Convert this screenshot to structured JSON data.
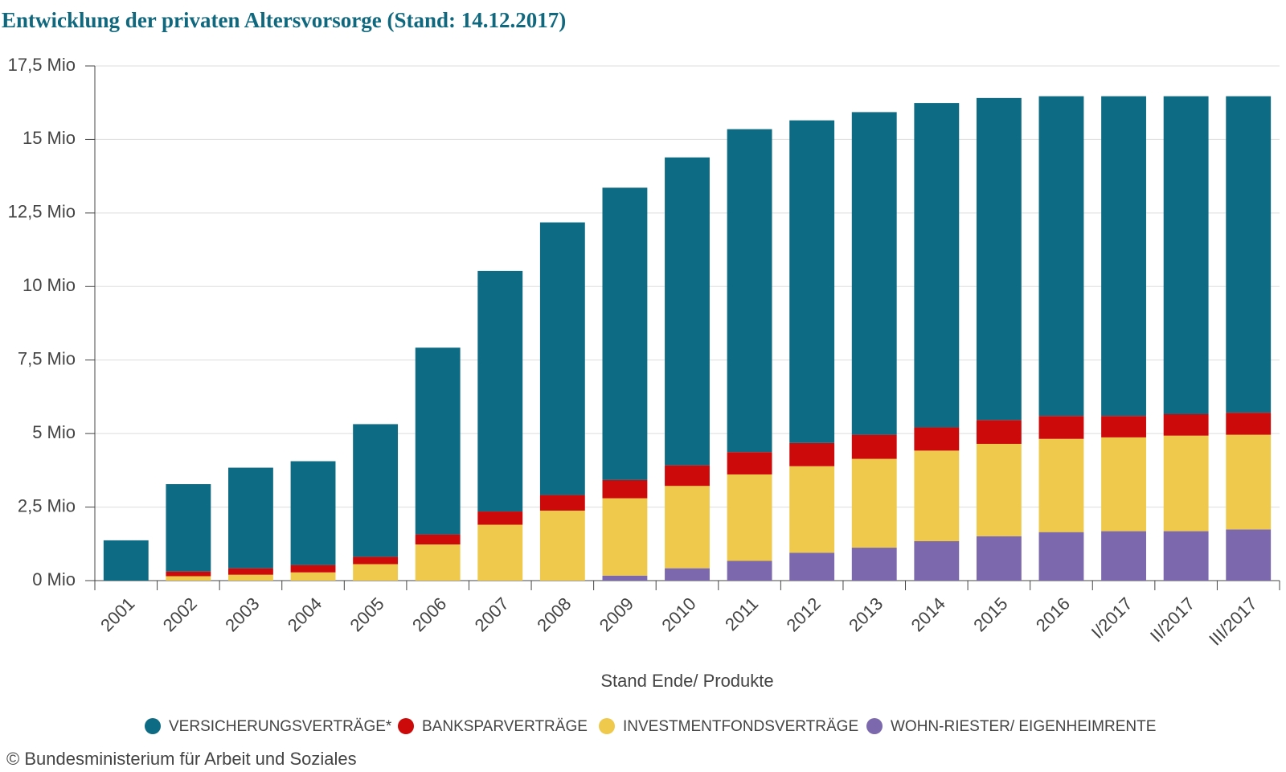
{
  "chart_data": {
    "type": "stacked_bar",
    "title": "Entwicklung der privaten Altersvorsorge (Stand: 14.12.2017)",
    "x_label": "Stand Ende/ Produkte",
    "source": "© Bundesministerium für Arbeit und Soziales",
    "categories": [
      "2001",
      "2002",
      "2003",
      "2004",
      "2005",
      "2006",
      "2007",
      "2008",
      "2009",
      "2010",
      "2011",
      "2012",
      "2013",
      "2014",
      "2015",
      "2016",
      "I/2017",
      "II/2017",
      "III/2017"
    ],
    "series": [
      {
        "name": "VERSICHERUNGSVERTRÄGE*",
        "color": "#0e6b84",
        "values": [
          1.37,
          2.97,
          3.42,
          3.53,
          4.51,
          6.35,
          8.18,
          9.27,
          9.94,
          10.47,
          10.98,
          10.97,
          10.97,
          11.03,
          10.95,
          10.87,
          10.87,
          10.81,
          10.76
        ]
      },
      {
        "name": "BANKSPARVERTRÄGE",
        "color": "#cc0a0a",
        "values": [
          0,
          0.16,
          0.22,
          0.25,
          0.25,
          0.34,
          0.45,
          0.53,
          0.62,
          0.7,
          0.76,
          0.79,
          0.82,
          0.79,
          0.81,
          0.78,
          0.73,
          0.73,
          0.75
        ]
      },
      {
        "name": "INVESTMENTFONDSVERTRÄGE",
        "color": "#efc94c",
        "values": [
          0,
          0.15,
          0.2,
          0.28,
          0.56,
          1.23,
          1.9,
          2.38,
          2.63,
          2.8,
          2.94,
          2.94,
          3.02,
          3.08,
          3.14,
          3.17,
          3.19,
          3.25,
          3.22
        ]
      },
      {
        "name": "WOHN-RIESTER/ EIGENHEIMRENTE",
        "color": "#7b68ad",
        "values": [
          0,
          0,
          0,
          0,
          0,
          0,
          0,
          0,
          0.17,
          0.42,
          0.67,
          0.95,
          1.12,
          1.34,
          1.51,
          1.65,
          1.68,
          1.68,
          1.74
        ]
      }
    ],
    "ylim": [
      0,
      17.5
    ],
    "yticks": [
      {
        "value": 0,
        "label": "0 Mio"
      },
      {
        "value": 2.5,
        "label": "2,5 Mio"
      },
      {
        "value": 5,
        "label": "5 Mio"
      },
      {
        "value": 7.5,
        "label": "7,5 Mio"
      },
      {
        "value": 10,
        "label": "10 Mio"
      },
      {
        "value": 12.5,
        "label": "12,5 Mio"
      },
      {
        "value": 15,
        "label": "15 Mio"
      },
      {
        "value": 17.5,
        "label": "17,5 Mio"
      }
    ],
    "grid": true
  }
}
